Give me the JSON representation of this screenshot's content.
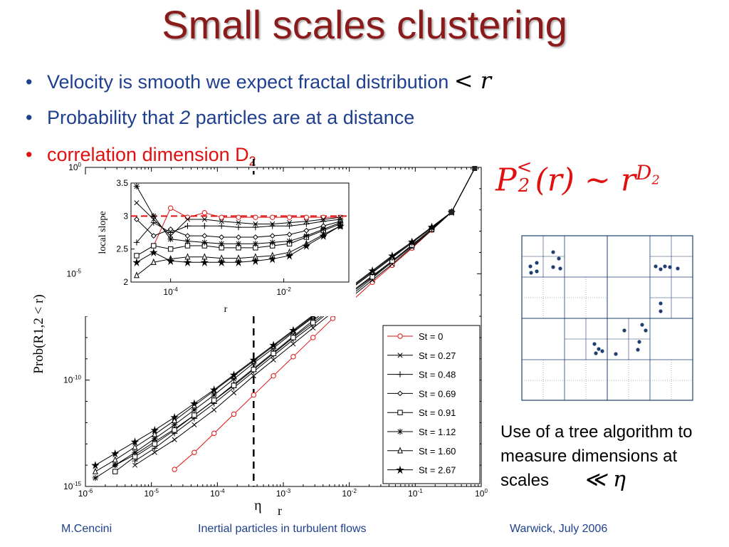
{
  "title": "Small scales clustering",
  "bullets": [
    {
      "text": "Velocity is smooth we expect fractal distribution",
      "math": "< r"
    },
    {
      "pre": "Probability that ",
      "italic": "2",
      "post": " particles are at a distance"
    },
    {
      "text": "correlation dimension D",
      "sub": "2"
    }
  ],
  "formula": {
    "text": "P",
    "sub": "2",
    "sup": "<",
    "rest": "(r) ~ r",
    "exp": "D",
    "exp_sub": "2"
  },
  "side_text": "Use of a tree algorithm to measure dimensions at scales",
  "side_math": "≪ η",
  "footer": {
    "author": "M.Cencini",
    "talk": "Inertial particles in turbulent flows",
    "venue": "Warwick, July 2006"
  },
  "colors": {
    "title": "#8b1a1a",
    "bullet": "#1f3f8f",
    "accent": "#e01010"
  },
  "chart_data": [
    {
      "type": "line",
      "xlabel": "r",
      "ylabel": "Prob(R1,2 < r)",
      "log_x": true,
      "log_y": true,
      "xlim_exp": [
        -6,
        0
      ],
      "ylim_exp": [
        -15,
        0
      ],
      "x_tick_labels": [
        "10-6",
        "10-5",
        "10-4",
        "10-3",
        "10-2",
        "10-1",
        "100"
      ],
      "y_tick_labels": [
        "10-15",
        "10-10",
        "10-5",
        "100"
      ],
      "eta_label": "η",
      "eta_log10": -3.45,
      "legend": [
        "St = 0",
        "St = 0.27",
        "St = 0.48",
        "St = 0.69",
        "St = 0.91",
        "St = 1.12",
        "St = 1.60",
        "St = 2.67"
      ],
      "series": [
        {
          "name": "St = 0",
          "x": [
            -4.65,
            -4.35,
            -4.05,
            -3.75,
            -3.45,
            -3.15,
            -2.85,
            -2.55,
            -2.25,
            -1.95,
            -1.65,
            -1.35,
            -1.05,
            -0.75,
            -0.45,
            -0.1
          ],
          "y": [
            -14.2,
            -13.4,
            -12.5,
            -11.6,
            -10.7,
            -9.8,
            -8.9,
            -8.0,
            -7.1,
            -6.25,
            -5.4,
            -4.6,
            -3.8,
            -2.95,
            -2.1,
            -0.05
          ]
        },
        {
          "name": "St = 0.27",
          "x": [
            -5.25,
            -4.95,
            -4.65,
            -4.35,
            -4.05,
            -3.75,
            -3.45,
            -3.15,
            -2.85,
            -2.55,
            -2.25,
            -1.95,
            -1.65,
            -1.35,
            -1.05,
            -0.75,
            -0.45,
            -0.1
          ],
          "y": [
            -14.0,
            -13.4,
            -12.8,
            -12.1,
            -11.4,
            -10.6,
            -9.8,
            -9.05,
            -8.3,
            -7.55,
            -6.8,
            -6.05,
            -5.3,
            -4.55,
            -3.75,
            -2.95,
            -2.1,
            -0.05
          ]
        },
        {
          "name": "St = 0.48",
          "x": [
            -5.25,
            -4.95,
            -4.65,
            -4.35,
            -4.05,
            -3.75,
            -3.45,
            -3.15,
            -2.85,
            -2.55,
            -2.25,
            -1.95,
            -1.65,
            -1.35,
            -1.05,
            -0.75,
            -0.45,
            -0.1
          ],
          "y": [
            -13.8,
            -13.2,
            -12.5,
            -11.8,
            -11.1,
            -10.35,
            -9.6,
            -8.85,
            -8.1,
            -7.4,
            -6.65,
            -5.95,
            -5.2,
            -4.45,
            -3.7,
            -2.9,
            -2.1,
            -0.05
          ]
        },
        {
          "name": "St = 0.69",
          "x": [
            -5.55,
            -5.25,
            -4.95,
            -4.65,
            -4.35,
            -4.05,
            -3.75,
            -3.45,
            -3.15,
            -2.85,
            -2.55,
            -2.25,
            -1.95,
            -1.65,
            -1.35,
            -1.05,
            -0.75,
            -0.45,
            -0.1
          ],
          "y": [
            -14.0,
            -13.5,
            -12.9,
            -12.3,
            -11.65,
            -10.95,
            -10.2,
            -9.45,
            -8.7,
            -7.95,
            -7.2,
            -6.5,
            -5.8,
            -5.1,
            -4.4,
            -3.65,
            -2.9,
            -2.1,
            -0.05
          ]
        },
        {
          "name": "St = 0.91",
          "x": [
            -5.55,
            -5.25,
            -4.95,
            -4.65,
            -4.35,
            -4.05,
            -3.75,
            -3.45,
            -3.15,
            -2.85,
            -2.55,
            -2.25,
            -1.95,
            -1.65,
            -1.35,
            -1.05,
            -0.75,
            -0.45,
            -0.1
          ],
          "y": [
            -14.3,
            -13.6,
            -13.0,
            -12.35,
            -11.65,
            -10.95,
            -10.25,
            -9.5,
            -8.75,
            -8.0,
            -7.3,
            -6.6,
            -5.85,
            -5.15,
            -4.4,
            -3.65,
            -2.9,
            -2.1,
            -0.05
          ]
        },
        {
          "name": "St = 1.12",
          "x": [
            -5.85,
            -5.55,
            -5.25,
            -4.95,
            -4.65,
            -4.35,
            -4.05,
            -3.75,
            -3.45,
            -3.15,
            -2.85,
            -2.55,
            -2.25,
            -1.95,
            -1.65,
            -1.35,
            -1.05,
            -0.75,
            -0.45,
            -0.1
          ],
          "y": [
            -14.6,
            -14.0,
            -13.4,
            -12.75,
            -12.1,
            -11.4,
            -10.7,
            -9.95,
            -9.2,
            -8.5,
            -7.75,
            -7.05,
            -6.35,
            -5.65,
            -4.95,
            -4.25,
            -3.55,
            -2.85,
            -2.1,
            -0.05
          ]
        },
        {
          "name": "St = 1.60",
          "x": [
            -5.85,
            -5.55,
            -5.25,
            -4.95,
            -4.65,
            -4.35,
            -4.05,
            -3.75,
            -3.45,
            -3.15,
            -2.85,
            -2.55,
            -2.25,
            -1.95,
            -1.65,
            -1.35,
            -1.05,
            -0.75,
            -0.45,
            -0.1
          ],
          "y": [
            -14.3,
            -13.75,
            -13.15,
            -12.55,
            -11.9,
            -11.2,
            -10.5,
            -9.8,
            -9.1,
            -8.4,
            -7.7,
            -7.0,
            -6.3,
            -5.6,
            -4.9,
            -4.2,
            -3.5,
            -2.8,
            -2.1,
            -0.05
          ]
        },
        {
          "name": "St = 2.67",
          "x": [
            -5.85,
            -5.55,
            -5.25,
            -4.95,
            -4.65,
            -4.35,
            -4.05,
            -3.75,
            -3.45,
            -3.15,
            -2.85,
            -2.55,
            -2.25,
            -1.95,
            -1.65,
            -1.35,
            -1.05,
            -0.75,
            -0.45,
            -0.1
          ],
          "y": [
            -14.0,
            -13.45,
            -12.9,
            -12.35,
            -11.75,
            -11.1,
            -10.45,
            -9.75,
            -9.05,
            -8.35,
            -7.65,
            -6.95,
            -6.25,
            -5.55,
            -4.85,
            -4.15,
            -3.5,
            -2.8,
            -2.1,
            -0.05
          ]
        }
      ]
    },
    {
      "type": "line",
      "xlabel": "r",
      "ylabel": "local slope",
      "log_x": true,
      "xlim_exp": [
        -4.7,
        -0.85
      ],
      "ylim": [
        2,
        3.5
      ],
      "y_tick_labels": [
        "2",
        "2.5",
        "3",
        "3.5"
      ],
      "x_tick_labels": [
        "10-4",
        "10-2"
      ],
      "reference_line": 3,
      "series": [
        {
          "name": "St = 0",
          "x": [
            -4.3,
            -4.0,
            -3.7,
            -3.4,
            -3.1,
            -2.8,
            -2.5,
            -2.2,
            -1.9,
            -1.6,
            -1.3,
            -1.0
          ],
          "y": [
            2.55,
            3.12,
            2.98,
            3.05,
            2.98,
            2.98,
            2.98,
            2.98,
            2.98,
            2.98,
            2.98,
            2.98
          ]
        },
        {
          "name": "St = 0.27",
          "x": [
            -4.6,
            -4.3,
            -4.0,
            -3.7,
            -3.4,
            -3.1,
            -2.8,
            -2.5,
            -2.2,
            -1.9,
            -1.6,
            -1.3,
            -1.0
          ],
          "y": [
            3.2,
            2.95,
            2.7,
            2.95,
            2.95,
            2.92,
            2.9,
            2.88,
            2.88,
            2.9,
            2.92,
            2.95,
            2.98
          ]
        },
        {
          "name": "St = 0.48",
          "x": [
            -4.6,
            -4.3,
            -4.0,
            -3.7,
            -3.4,
            -3.1,
            -2.8,
            -2.5,
            -2.2,
            -1.9,
            -1.6,
            -1.3,
            -1.0
          ],
          "y": [
            2.6,
            2.9,
            2.75,
            2.85,
            2.85,
            2.85,
            2.83,
            2.83,
            2.85,
            2.85,
            2.88,
            2.92,
            2.95
          ]
        },
        {
          "name": "St = 0.69",
          "x": [
            -4.6,
            -4.3,
            -4.0,
            -3.7,
            -3.4,
            -3.1,
            -2.8,
            -2.5,
            -2.2,
            -1.9,
            -1.6,
            -1.3,
            -1.0
          ],
          "y": [
            2.95,
            2.7,
            2.8,
            2.7,
            2.7,
            2.68,
            2.68,
            2.68,
            2.7,
            2.72,
            2.78,
            2.85,
            2.92
          ]
        },
        {
          "name": "St = 0.91",
          "x": [
            -4.6,
            -4.3,
            -4.0,
            -3.7,
            -3.4,
            -3.1,
            -2.8,
            -2.5,
            -2.2,
            -1.9,
            -1.6,
            -1.3,
            -1.0
          ],
          "y": [
            2.4,
            2.55,
            2.5,
            2.55,
            2.55,
            2.52,
            2.52,
            2.52,
            2.55,
            2.58,
            2.68,
            2.78,
            2.88
          ]
        },
        {
          "name": "St = 1.12",
          "x": [
            -4.6,
            -4.3,
            -4.0,
            -3.7,
            -3.4,
            -3.1,
            -2.8,
            -2.5,
            -2.2,
            -1.9,
            -1.6,
            -1.3,
            -1.0
          ],
          "y": [
            3.45,
            3.0,
            2.65,
            2.62,
            2.6,
            2.58,
            2.58,
            2.58,
            2.6,
            2.62,
            2.7,
            2.8,
            2.9
          ]
        },
        {
          "name": "St = 1.60",
          "x": [
            -4.6,
            -4.3,
            -4.0,
            -3.7,
            -3.4,
            -3.1,
            -2.8,
            -2.5,
            -2.2,
            -1.9,
            -1.6,
            -1.3,
            -1.0
          ],
          "y": [
            2.1,
            2.3,
            2.35,
            2.38,
            2.38,
            2.36,
            2.36,
            2.38,
            2.4,
            2.45,
            2.58,
            2.72,
            2.85
          ]
        },
        {
          "name": "St = 2.67",
          "x": [
            -4.6,
            -4.3,
            -4.0,
            -3.7,
            -3.4,
            -3.1,
            -2.8,
            -2.5,
            -2.2,
            -1.9,
            -1.6,
            -1.3,
            -1.0
          ],
          "y": [
            2.3,
            2.45,
            2.32,
            2.3,
            2.3,
            2.3,
            2.3,
            2.32,
            2.35,
            2.4,
            2.55,
            2.7,
            2.85
          ]
        }
      ]
    }
  ]
}
